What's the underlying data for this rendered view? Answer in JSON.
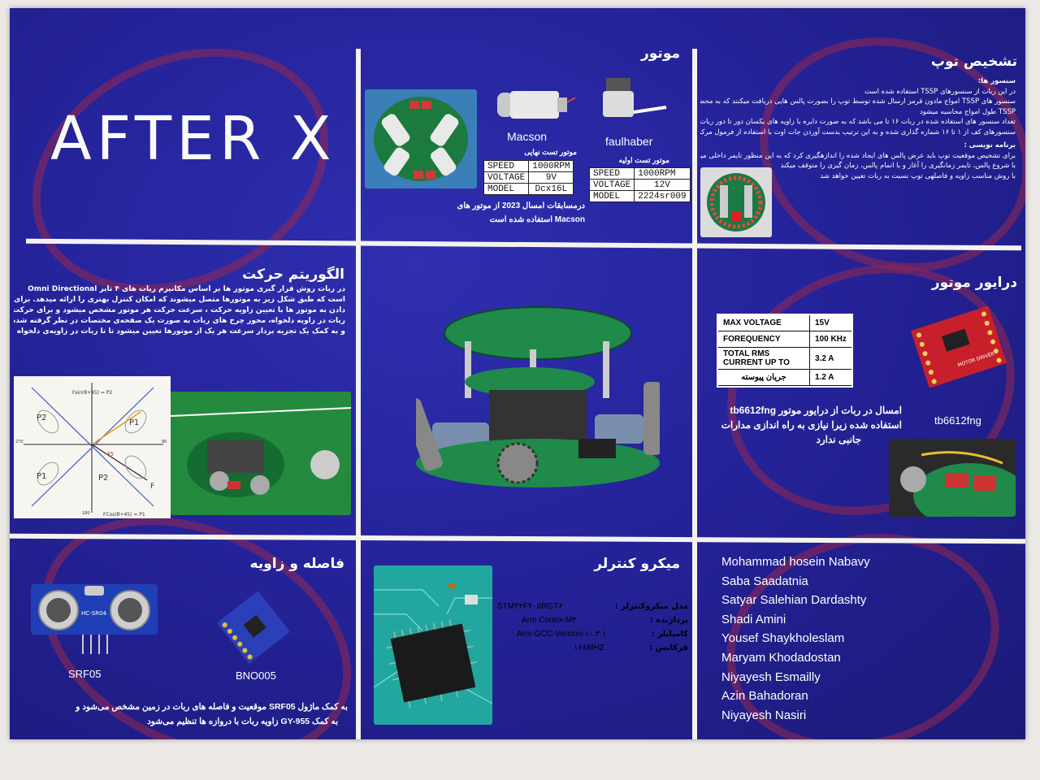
{
  "logo_text": "AFTER X",
  "motor": {
    "title": "موتور",
    "left_name": "Macson",
    "right_name": "faulhaber",
    "final_label": "موتور تست نهایی",
    "initial_label": "موتور تست اولیه",
    "final_rows": [
      [
        "SPEED",
        "1000RPM"
      ],
      [
        "VOLTAGE",
        "9V"
      ],
      [
        "MODEL",
        "Dcx16L"
      ]
    ],
    "initial_rows": [
      [
        "SPEED",
        "1000RPM"
      ],
      [
        "VOLTAGE",
        "12V"
      ],
      [
        "MODEL",
        "2224sr009"
      ]
    ],
    "note_line1": "درمسابقات امسال 2023 از موتور های",
    "note_line2": "Macson استفاده شده است"
  },
  "ball": {
    "title": "تشخیص توپ",
    "sub1": "سنسور ها:",
    "lines1": [
      "در این ربات از سنسورهای TSSP استفاده شده است",
      "سنسور های TSSP امواج مادون قرمز ارسال شده توسط توپ را بصورت پالس هایی دریافت میکنند که به محض تشخیص این امواج توسط",
      "TSSP طول امواج محاسبه میشود",
      "تعداد سنسور های استفاده شده در ربات ۱۶ تا می باشد که به صورت دایره با زاویه های یکسان دور تا دور ربات قرار گرفتند",
      "سنسورهای کف از ۱ تا ۱۶ شماره گذاری شده و به این ترتیب بدست آوردن جات اوت با استفاده از فرمول مرکز ثقل انجام خواهد گرفت"
    ],
    "sub2": "برنامه نویسی :",
    "lines2": [
      "برای تشخیص موقعیت توپ باید عرض پالس های ایجاد شده را اندازهگیری کرد که به این منظور تایمر داخلی میکرو استفاده میشود",
      "با شروع پالس، تایمر زمانگیری را آغاز و با اتمام پالس، زمان گیری را متوقف میکند",
      "با روش مناسب زاویه و فاصلهی توپ نسبت به ربات تعیین خواهد شد"
    ]
  },
  "algorithm": {
    "title": "الگوریتم حرکت",
    "lines": [
      "در ربات روش قرار گیری موتور ها بر اساس مکانیزم ربات های ۴ تایر Omni Directional",
      "است که طبق شکل زیر به موتورها متصل میشوند که امکان کنترل بهتری را ارائه میدهد. برای فرمان",
      "دادن به موتور ها با تعیین زاویه حرکت ، سرعت حرکت هر موتور مشخص میشود و برای حرکت دادن",
      "ربات در زاویه دلخواه، محور چرخ های ربات به صورت یک صفحه‌ی مختصات در نظر گرفته شده است .",
      "و به کمک یک تجزیه بردار سرعت هر یک از موتورها تعیین میشود تا تا ربات در زاویه‌ی دلخواه حرکت کند"
    ],
    "diagram": {
      "p1": "P1",
      "p2": "P2",
      "formula_top": "Fsin(θ+45) = P2",
      "formula_bottom": "FCos(θ+45) = P1",
      "f": "F",
      "angle": "45",
      "axis_left": "270",
      "axis_right": "90",
      "axis_bottom": "180"
    }
  },
  "driver": {
    "title": "درایور موتور",
    "rows": [
      [
        "MAX VOLTAGE",
        "15V"
      ],
      [
        "FOREQUENCY",
        "100 KHz"
      ],
      [
        "TOTAL RMS CURRENT UP TO",
        "3.2 A"
      ],
      [
        "جریان پیوسته",
        "1.2 A"
      ]
    ],
    "chip_label": "tb6612fng",
    "board_text": "MOTOR DRIVER",
    "desc_line1": "امسال در ربات از درایور موتور tb6612fng",
    "desc_line2": "استفاده شده زیرا نیازی به راه اندازی مدارات",
    "desc_line3": "جانبی ندارد"
  },
  "distance": {
    "title": "فاصله و زاویه",
    "sensor1": "SRF05",
    "sensor2": "BNO005",
    "sensor1_print": "HC-SR04",
    "line1": "به کمک ماژول SRF05 موقعیت و فاصله های ربات در زمین مشخص می‌شود و",
    "line2": "به کمک GY-955 زاویه ربات با دروازه ها تنظیم می‌شود"
  },
  "micro": {
    "title": "میکرو کنترلر",
    "keys": [
      "مدل میکروکنترلر :",
      "پردازنده :",
      "کامپایلر :",
      "فرکانس :"
    ],
    "values": [
      "STM۳۲F۴۰۵RGT۶",
      "Arm Cortex-M۴",
      "Arm-GCC-Version:۱۰.۳.۱",
      "۱۶۸MHZ"
    ]
  },
  "team": [
    "Mohammad hosein Nabavy",
    "Saba Saadatnia",
    "Satyar Salehian Dardashty",
    "Shadi Amini",
    "Yousef Shaykholeslam",
    "Maryam Khodadostan",
    "Niyayesh Esmailly",
    "Azin Bahadoran",
    "Niyayesh Nasiri"
  ],
  "colors": {
    "poster": "#25239a",
    "grid": "#f4f2ee",
    "marker": "#96284f",
    "board_green": "#1e8a4a",
    "driver_red": "#c8202a"
  }
}
